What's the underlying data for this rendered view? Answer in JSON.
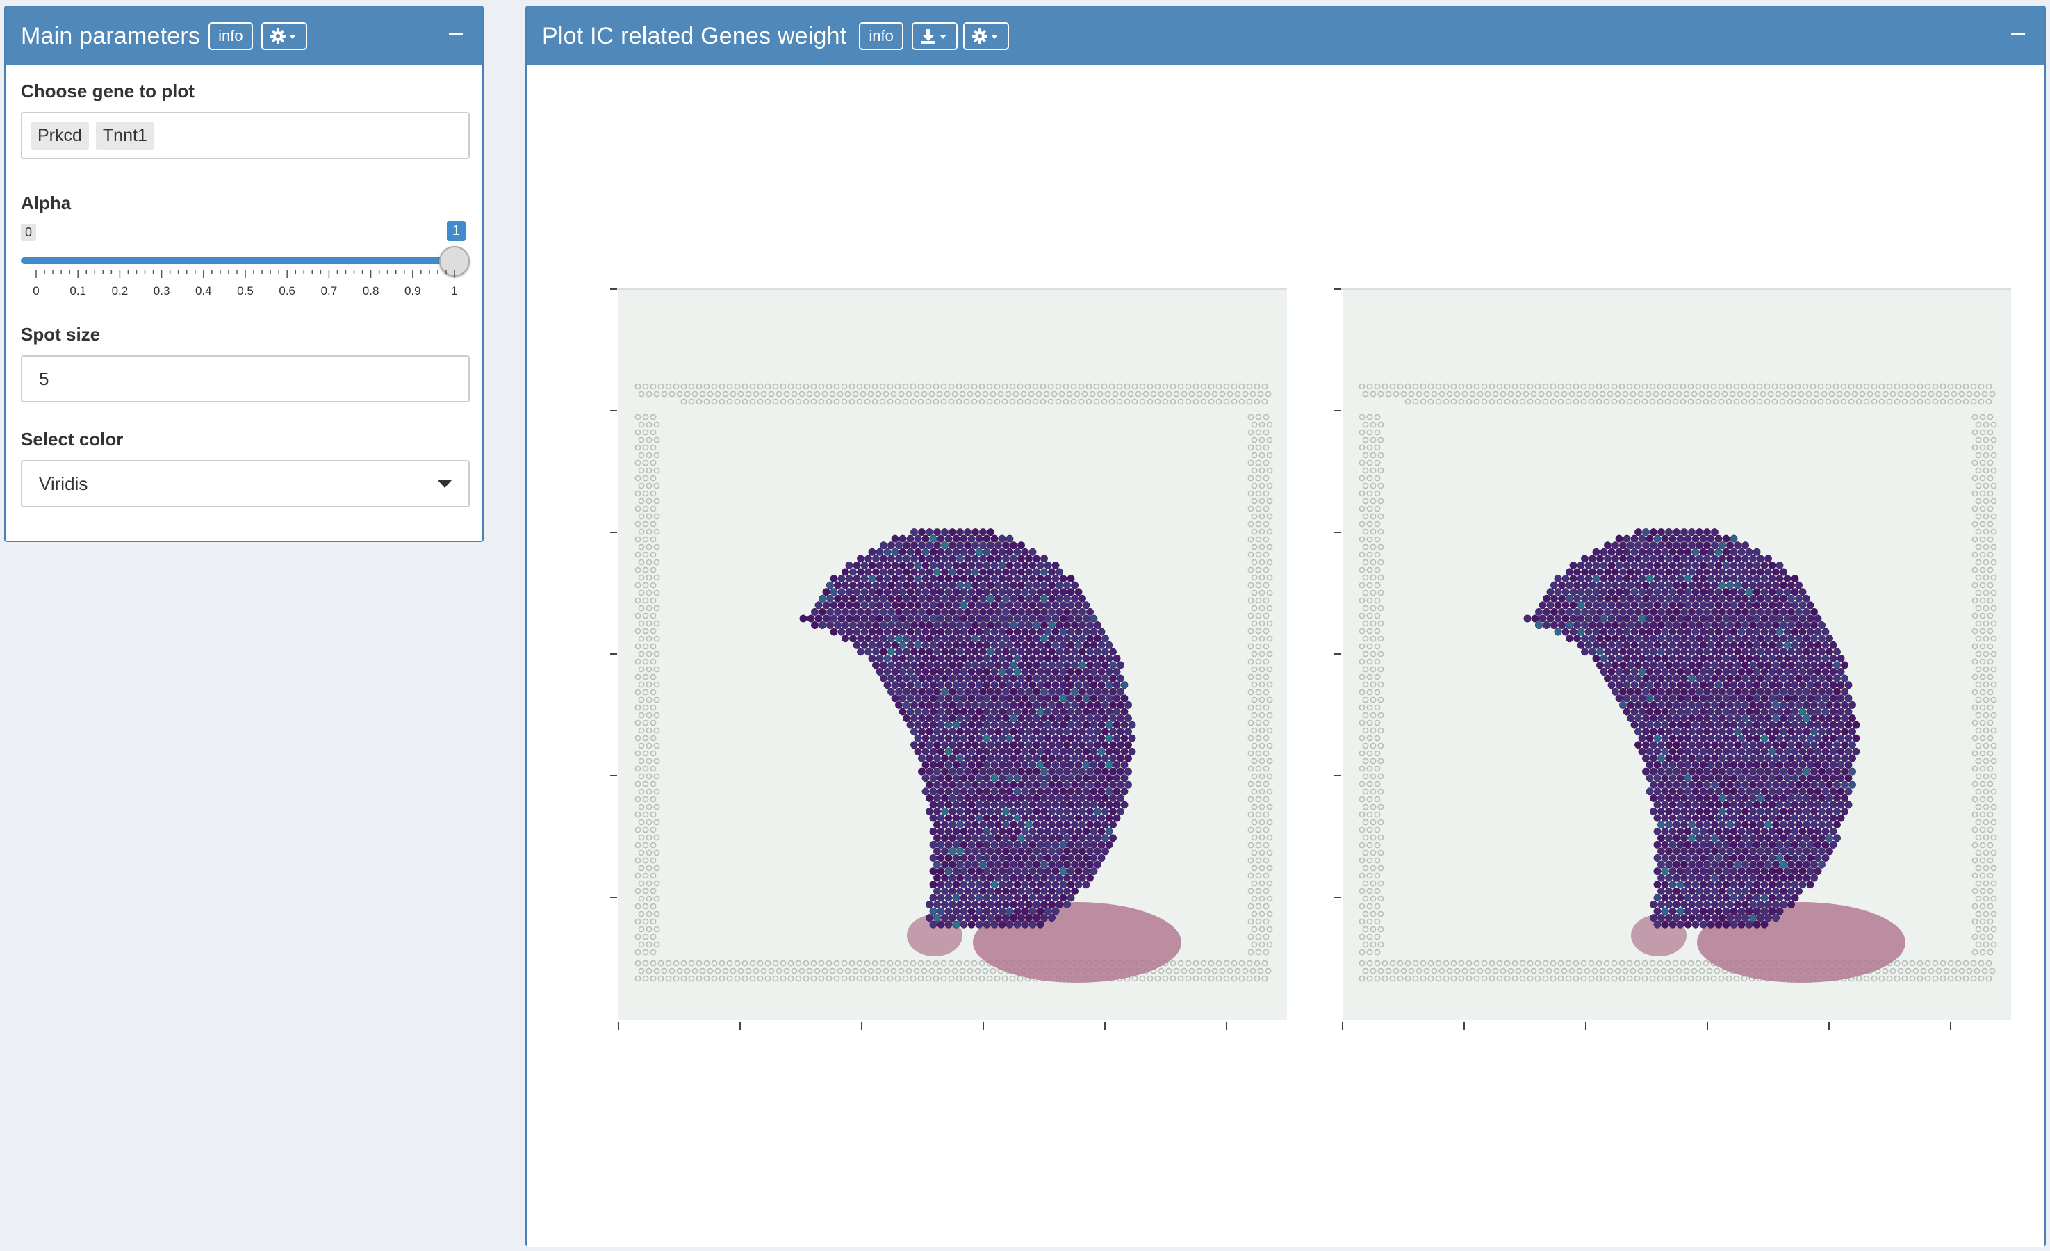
{
  "left_panel": {
    "title": "Main parameters",
    "info_label": "info",
    "gear_icon": "gear-icon",
    "collapse_icon": "minus-icon",
    "gene_field": {
      "label": "Choose gene to plot",
      "selected": [
        "Prkcd",
        "Tnnt1"
      ]
    },
    "alpha_slider": {
      "label": "Alpha",
      "min_label": "0",
      "max_label": "1",
      "value": 1,
      "min": 0,
      "max": 1,
      "tick_labels": [
        "0",
        "0.1",
        "0.2",
        "0.3",
        "0.4",
        "0.5",
        "0.6",
        "0.7",
        "0.8",
        "0.9",
        "1"
      ]
    },
    "spot_size": {
      "label": "Spot size",
      "value": "5"
    },
    "color_select": {
      "label": "Select color",
      "value": "Viridis"
    }
  },
  "right_panel": {
    "title": "Plot IC related Genes weight",
    "info_label": "info",
    "download_icon": "download-icon",
    "gear_icon": "gear-icon",
    "collapse_icon": "minus-icon",
    "plots": [
      {
        "gene": "Prkcd",
        "colorscale": "Viridis"
      },
      {
        "gene": "Tnnt1",
        "colorscale": "Viridis"
      }
    ]
  },
  "colors": {
    "header": "#5089b9",
    "slider": "#428bca",
    "viridis_low": "#440154",
    "viridis_mid": "#21918c",
    "viridis_high": "#fde725"
  }
}
